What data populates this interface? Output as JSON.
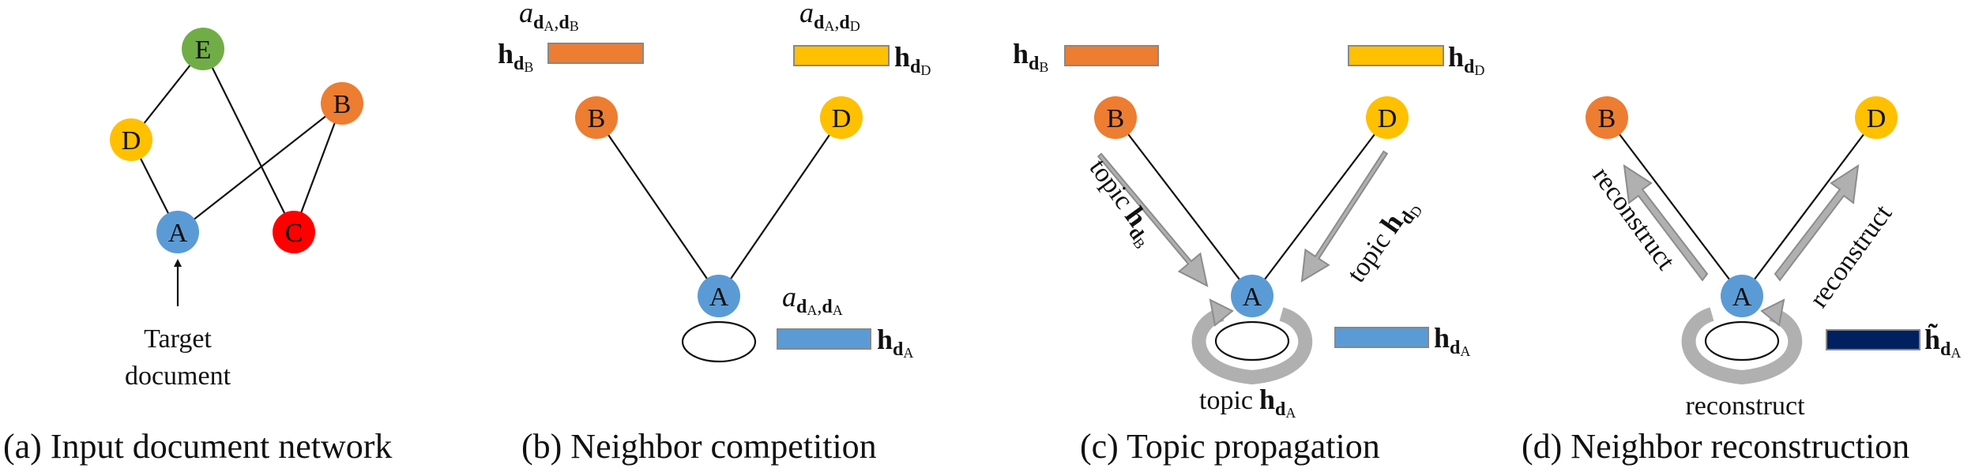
{
  "colors": {
    "blue": "#5b9bd5",
    "orange": "#ed7d31",
    "yellow": "#ffc000",
    "green": "#70ad47",
    "red": "#ff0000",
    "navy": "#002060",
    "arrow_gray": "#b0b0b0"
  },
  "panel_a": {
    "caption": "(a) Input document network",
    "nodes": {
      "A": "A",
      "B": "B",
      "C": "C",
      "D": "D",
      "E": "E"
    },
    "target_line1": "Target",
    "target_line2": "document"
  },
  "panel_b": {
    "caption": "(b) Neighbor competition",
    "nodes": {
      "A": "A",
      "B": "B",
      "D": "D"
    },
    "h": "h",
    "d": "d",
    "a": "a",
    "sub_A": "A",
    "sub_B": "B",
    "sub_D": "D",
    "comma": ","
  },
  "panel_c": {
    "caption": "(c) Topic propagation",
    "nodes": {
      "A": "A",
      "B": "B",
      "D": "D"
    },
    "topic": "topic",
    "h": "h",
    "d": "d",
    "sub_A": "A",
    "sub_B": "B",
    "sub_D": "D"
  },
  "panel_d": {
    "caption": "(d) Neighbor reconstruction",
    "nodes": {
      "A": "A",
      "B": "B",
      "D": "D"
    },
    "reconstruct": "reconstruct",
    "h_tilde": "h̃",
    "d": "d",
    "sub_A": "A"
  }
}
